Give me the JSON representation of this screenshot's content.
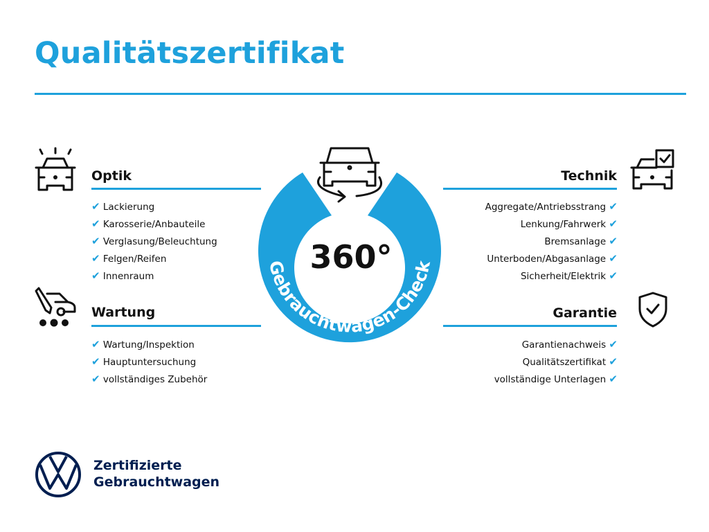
{
  "title": "Qualitätszertifikat",
  "colors": {
    "accent": "#1ea1dc",
    "brand_navy": "#001e50"
  },
  "badge": {
    "center_text": "360°",
    "ring_text": "Gebrauchtwagen-Check",
    "icon": "car-rotate-icon"
  },
  "sections": {
    "optik": {
      "title": "Optik",
      "icon": "car-shine-icon",
      "items": [
        "Lackierung",
        "Karosserie/Anbauteile",
        "Verglasung/Beleuchtung",
        "Felgen/Reifen",
        "Innenraum"
      ]
    },
    "wartung": {
      "title": "Wartung",
      "icon": "service-tools-icon",
      "items": [
        "Wartung/Inspektion",
        "Hauptuntersuchung",
        "vollständiges Zubehör"
      ]
    },
    "technik": {
      "title": "Technik",
      "icon": "car-checklist-icon",
      "items": [
        "Aggregate/Antriebsstrang",
        "Lenkung/Fahrwerk",
        "Bremsanlage",
        "Unterboden/Abgasanlage",
        "Sicherheit/Elektrik"
      ]
    },
    "garantie": {
      "title": "Garantie",
      "icon": "shield-check-icon",
      "items": [
        "Garantienachweis",
        "Qualitätszertifikat",
        "vollständige Unterlagen"
      ]
    }
  },
  "check_mark": "✔",
  "footer": {
    "line1": "Zertifizierte",
    "line2": "Gebrauchtwagen",
    "logo": "vw-logo"
  }
}
